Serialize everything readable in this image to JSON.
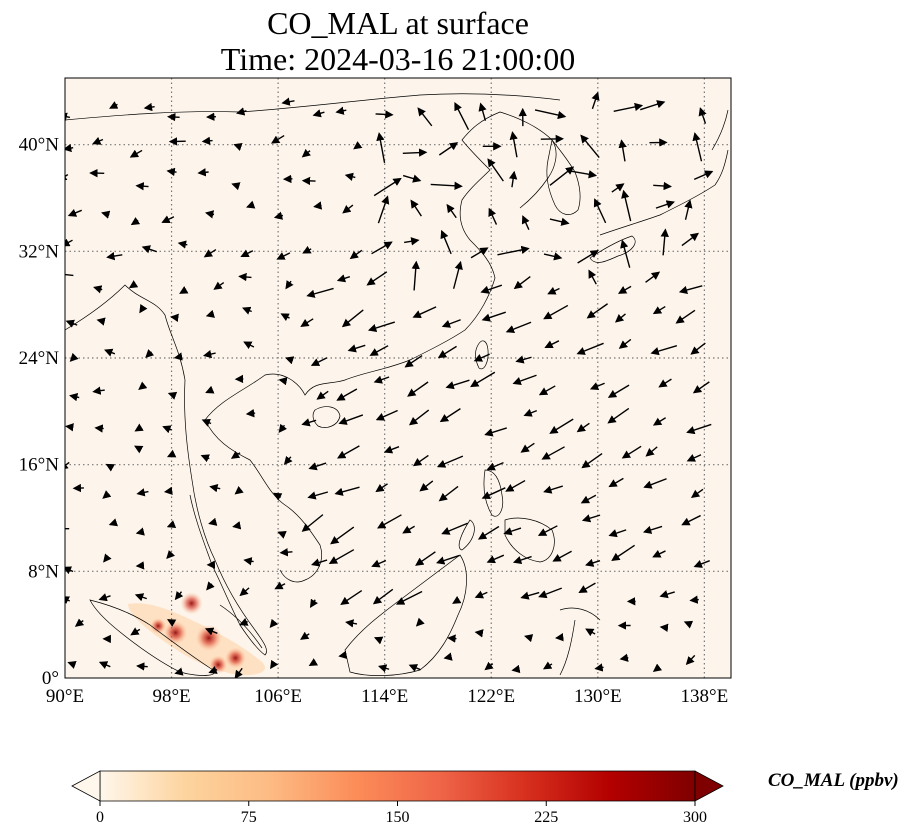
{
  "title": {
    "line1": "CO_MAL at surface",
    "line2": "Time: 2024-03-16 21:00:00"
  },
  "map": {
    "extent_lon": [
      90,
      140
    ],
    "extent_lat": [
      0,
      45
    ],
    "background_color": "#fdf5eb",
    "coastline_color": "#000000",
    "gridline_style": "dotted",
    "lon_ticks": [
      {
        "value": 90,
        "label": "90°E"
      },
      {
        "value": 98,
        "label": "98°E"
      },
      {
        "value": 106,
        "label": "106°E"
      },
      {
        "value": 114,
        "label": "114°E"
      },
      {
        "value": 122,
        "label": "122°E"
      },
      {
        "value": 130,
        "label": "130°E"
      },
      {
        "value": 138,
        "label": "138°E"
      }
    ],
    "lat_ticks": [
      {
        "value": 0,
        "label": "0°"
      },
      {
        "value": 8,
        "label": "8°N"
      },
      {
        "value": 16,
        "label": "16°N"
      },
      {
        "value": 24,
        "label": "24°N"
      },
      {
        "value": 32,
        "label": "32°N"
      },
      {
        "value": 40,
        "label": "40°N"
      }
    ],
    "hotspots": [
      {
        "lon": 99.5,
        "lat": 5.6,
        "value": 220
      },
      {
        "lon": 100.8,
        "lat": 3.0,
        "value": 280
      },
      {
        "lon": 98.3,
        "lat": 3.4,
        "value": 240
      },
      {
        "lon": 102.8,
        "lat": 1.5,
        "value": 200
      },
      {
        "lon": 101.5,
        "lat": 1.0,
        "value": 160
      },
      {
        "lon": 97.0,
        "lat": 3.9,
        "value": 120
      }
    ]
  },
  "colorbar": {
    "label": "CO_MAL (ppbv)",
    "min": 0,
    "max": 300,
    "colormap": "OrRd",
    "extend": "both",
    "ticks": [
      {
        "value": 0,
        "label": "0"
      },
      {
        "value": 75,
        "label": "75"
      },
      {
        "value": 150,
        "label": "150"
      },
      {
        "value": 225,
        "label": "225"
      },
      {
        "value": 300,
        "label": "300"
      }
    ],
    "stops": [
      "#fff7ec",
      "#fdd49e",
      "#fdbb84",
      "#fc8d59",
      "#ef6548",
      "#d7301f",
      "#b30000",
      "#7f0000"
    ]
  }
}
